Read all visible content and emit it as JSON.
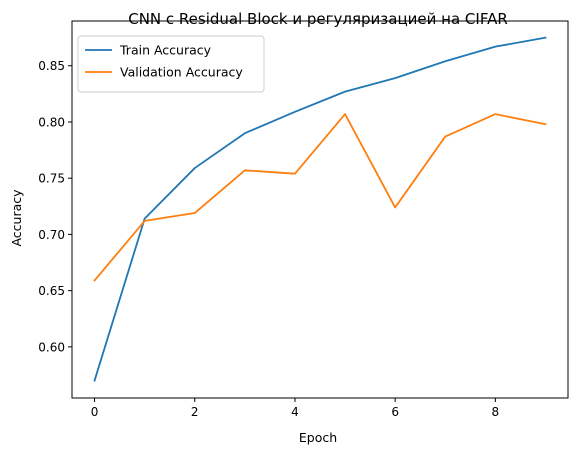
{
  "chart_data": {
    "type": "line",
    "title": "CNN с Residual Block и регуляризацией на CIFAR",
    "xlabel": "Epoch",
    "ylabel": "Accuracy",
    "x": [
      0,
      1,
      2,
      3,
      4,
      5,
      6,
      7,
      8,
      9
    ],
    "xlim": [
      -0.45,
      9.45
    ],
    "ylim": [
      0.5545,
      0.8898
    ],
    "xticks": [
      0,
      2,
      4,
      6,
      8
    ],
    "yticks": [
      0.6,
      0.65,
      0.7,
      0.75,
      0.8,
      0.85
    ],
    "xtick_labels": [
      "0",
      "2",
      "4",
      "6",
      "8"
    ],
    "ytick_labels": [
      "0.60",
      "0.65",
      "0.70",
      "0.75",
      "0.80",
      "0.85"
    ],
    "grid": false,
    "legend_position": "top-left",
    "series": [
      {
        "name": "Train Accuracy",
        "color": "#1f77b4",
        "values": [
          0.57,
          0.714,
          0.759,
          0.79,
          0.809,
          0.827,
          0.839,
          0.854,
          0.867,
          0.875
        ]
      },
      {
        "name": "Validation Accuracy",
        "color": "#ff7f0e",
        "values": [
          0.659,
          0.712,
          0.719,
          0.757,
          0.754,
          0.807,
          0.724,
          0.787,
          0.807,
          0.798
        ]
      }
    ]
  }
}
